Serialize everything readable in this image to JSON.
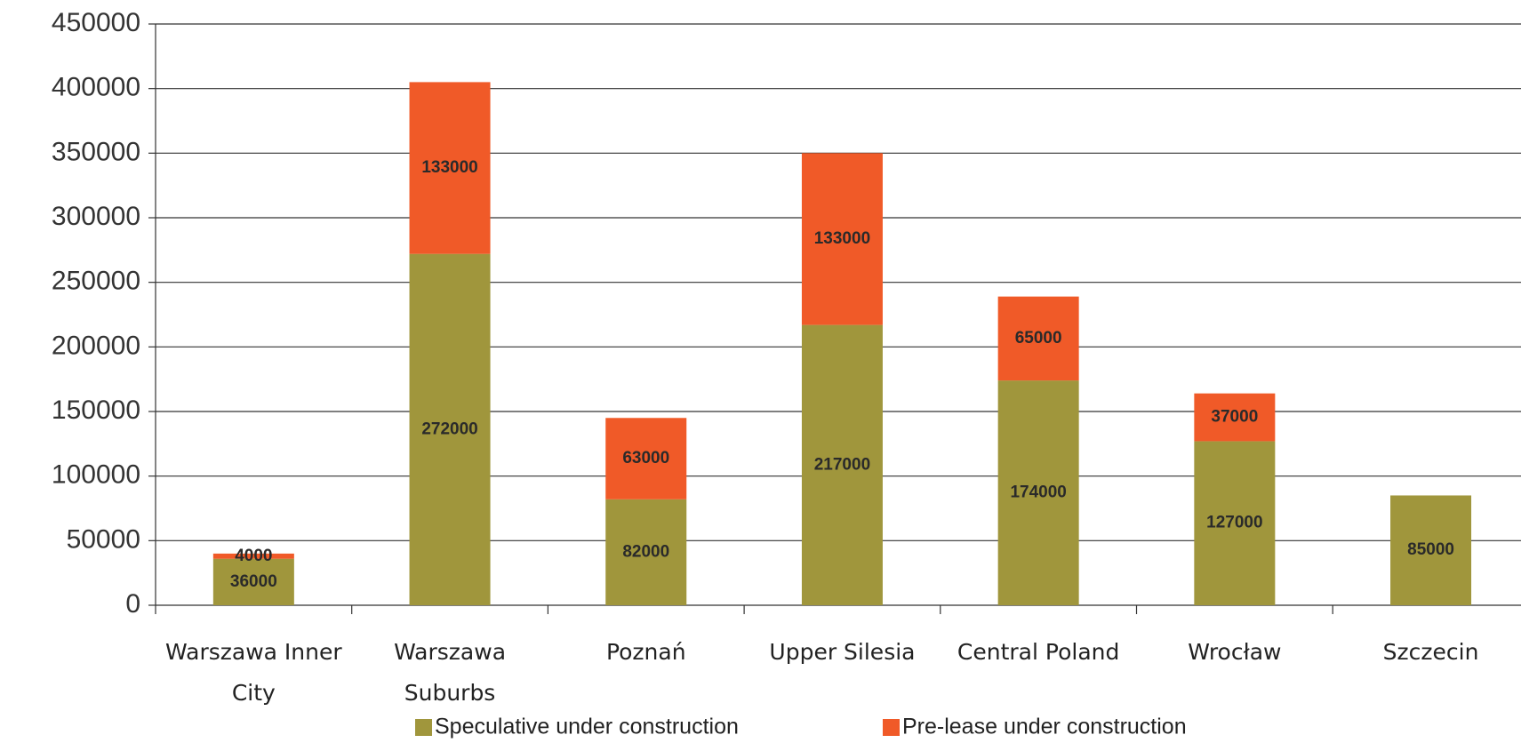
{
  "chart_data": {
    "type": "stacked_bar",
    "categories": [
      "Warszawa Inner City",
      "Warszawa Suburbs",
      "Poznań",
      "Upper Silesia",
      "Central Poland",
      "Wrocław",
      "Szczecin"
    ],
    "series": [
      {
        "name": "Speculative under construction",
        "color": "#a0963c",
        "values": [
          36000,
          272000,
          82000,
          217000,
          174000,
          127000,
          85000
        ]
      },
      {
        "name": "Pre-lease under construction",
        "color": "#f05a28",
        "values": [
          4000,
          133000,
          63000,
          133000,
          65000,
          37000,
          null
        ]
      }
    ],
    "ylim": [
      0,
      450000
    ],
    "yticks": [
      0,
      50000,
      100000,
      150000,
      200000,
      250000,
      300000,
      350000,
      400000,
      450000
    ],
    "grid": true,
    "legend": "bottom"
  }
}
